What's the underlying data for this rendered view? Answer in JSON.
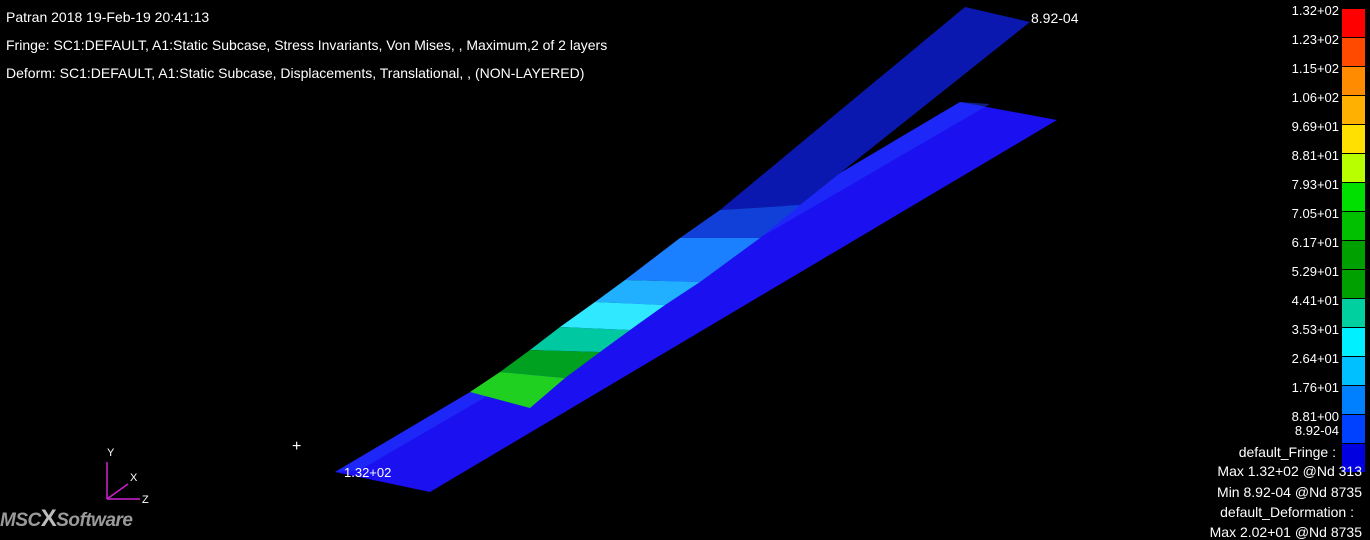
{
  "header": {
    "title": "Patran 2018 19-Feb-19 20:41:13",
    "fringe": "Fringe: SC1:DEFAULT, A1:Static Subcase, Stress Invariants, Von Mises, , Maximum,2 of 2 layers",
    "deform": "Deform: SC1:DEFAULT, A1:Static Subcase, Displacements, Translational, , (NON-LAYERED)"
  },
  "viewport": {
    "tip_label": "8.92-04",
    "root_label": "1.32+02",
    "origin_marker": "+"
  },
  "legend": {
    "labels": [
      "1.32+02",
      "1.23+02",
      "1.15+02",
      "1.06+02",
      "9.69+01",
      "8.81+01",
      "7.93+01",
      "7.05+01",
      "6.17+01",
      "5.29+01",
      "4.41+01",
      "3.53+01",
      "2.64+01",
      "1.76+01",
      "8.81+00",
      "8.92-04"
    ],
    "colors": [
      "#ff0000",
      "#ff4a00",
      "#ff8c00",
      "#ffb000",
      "#ffe000",
      "#b8ff00",
      "#00e000",
      "#00c000",
      "#00a000",
      "#00a000",
      "#00d0a0",
      "#00f0ff",
      "#00c0ff",
      "#0080ff",
      "#0040ff",
      "#0000e0"
    ]
  },
  "info": {
    "fringe_title": "default_Fringe :",
    "fringe_max": "Max 1.32+02 @Nd 313",
    "fringe_min": "Min 8.92-04 @Nd 8735",
    "deform_title": "default_Deformation :",
    "deform_max": "Max 2.02+01 @Nd 8735"
  },
  "axes": {
    "y": "Y",
    "x": "X",
    "z": "Z"
  },
  "logo": {
    "left": "MSC",
    "mark": "X",
    "right": "Software"
  }
}
